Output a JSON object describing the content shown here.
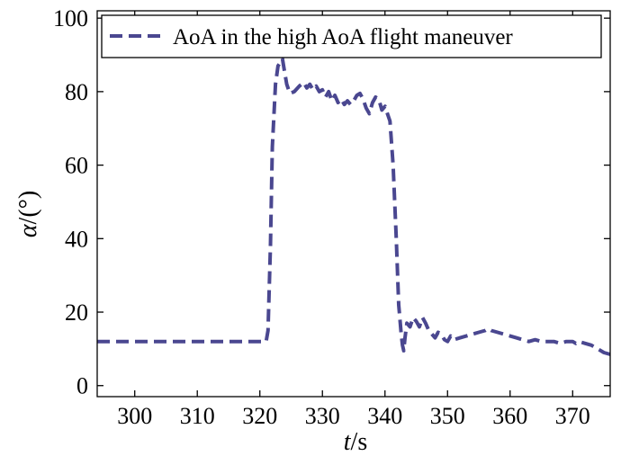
{
  "chart_data": {
    "type": "line",
    "title": "",
    "xlabel": {
      "italic": "t",
      "rest": "/s"
    },
    "ylabel": {
      "italic": "α",
      "rest": "/(°)"
    },
    "xlim": [
      294,
      376
    ],
    "ylim": [
      -3,
      102
    ],
    "xticks": [
      300,
      310,
      320,
      330,
      340,
      350,
      360,
      370
    ],
    "yticks": [
      0,
      20,
      40,
      60,
      80,
      100
    ],
    "grid": false,
    "legend_position": "top-right",
    "colors": {
      "series": "#4a4790",
      "axis": "#000000",
      "background": "#ffffff"
    },
    "series": [
      {
        "name": "AoA in the high AoA flight maneuver",
        "style": "dashed",
        "x": [
          294,
          300,
          310,
          315,
          320,
          321,
          321.3,
          321.7,
          322.0,
          322.5,
          322.9,
          323.3,
          323.6,
          323.9,
          324.3,
          324.8,
          325.5,
          326.3,
          327.0,
          327.5,
          328.0,
          328.5,
          329.0,
          329.5,
          330.0,
          330.5,
          331.0,
          331.5,
          332.0,
          332.5,
          333.0,
          333.5,
          334.0,
          334.5,
          335.0,
          335.5,
          336.0,
          336.5,
          337.0,
          337.5,
          338.0,
          338.5,
          339.0,
          339.5,
          340.0,
          340.3,
          340.8,
          341.3,
          341.8,
          342.2,
          342.6,
          342.8,
          343.0,
          343.2,
          343.5,
          344.0,
          344.5,
          345.0,
          345.5,
          346.0,
          346.5,
          347.0,
          347.5,
          348.0,
          348.5,
          349.0,
          349.5,
          350.0,
          350.5,
          351.0,
          352.0,
          353.0,
          354.0,
          355.0,
          356.0,
          356.5,
          357.0,
          358.0,
          359.0,
          360.0,
          361.0,
          362.0,
          363.0,
          364.0,
          365.0,
          366.0,
          367.0,
          368.0,
          369.0,
          370.0,
          370.5,
          371.0,
          372.0,
          373.0,
          374.0,
          375.0,
          376.0
        ],
        "y": [
          12,
          12,
          12,
          12,
          12,
          12,
          15,
          38,
          65,
          82,
          87,
          88,
          89,
          86,
          82,
          79.5,
          80,
          81.5,
          82.5,
          81,
          82,
          80.5,
          81.5,
          80,
          80.5,
          78.5,
          80,
          77.5,
          79,
          77,
          78,
          76.5,
          77.5,
          76.5,
          77.5,
          79,
          79.5,
          78,
          75.5,
          74,
          77,
          78.5,
          78,
          75,
          76,
          74.5,
          72,
          60,
          40,
          22,
          14,
          11,
          9.5,
          13,
          17,
          16,
          18.5,
          17.5,
          16,
          18.5,
          17,
          15,
          14,
          13,
          14.5,
          14,
          12.5,
          12,
          13.5,
          12.5,
          13,
          13.5,
          14,
          14.5,
          15,
          15.5,
          15,
          14.5,
          14,
          13.5,
          13,
          12.5,
          12,
          12.5,
          12,
          12,
          12,
          11.5,
          12,
          12,
          11.5,
          12,
          11.5,
          11,
          10,
          9,
          8.5
        ]
      }
    ]
  }
}
